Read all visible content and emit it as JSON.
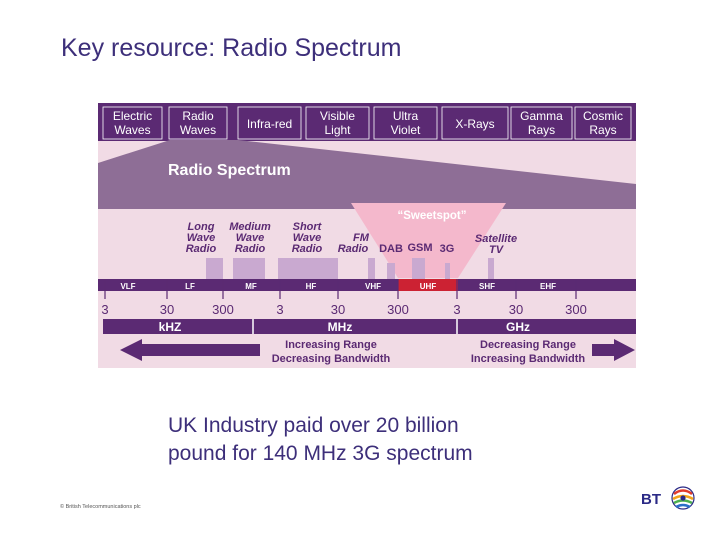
{
  "slide": {
    "title": "Key resource: Radio Spectrum",
    "caption_line1": "UK Industry paid over 20 billion",
    "caption_line2": "pound for 140 MHz 3G spectrum",
    "copyright": "© British Telecommunications plc",
    "logo_text": "BT"
  },
  "diagram": {
    "waves": [
      [
        "Electric",
        "Waves"
      ],
      [
        "Radio",
        "Waves"
      ],
      [
        "Infra-red",
        ""
      ],
      [
        "Visible",
        "Light"
      ],
      [
        "Ultra",
        "Violet"
      ],
      [
        "X-Rays",
        ""
      ],
      [
        "Gamma",
        "Rays"
      ],
      [
        "Cosmic",
        "Rays"
      ]
    ],
    "spectrum_title": "Radio Spectrum",
    "sweetspot": "“Sweetspot”",
    "services": {
      "long_wave": [
        "Long",
        "Wave",
        "Radio"
      ],
      "medium_wave": [
        "Medium",
        "Wave",
        "Radio"
      ],
      "short_wave": [
        "Short",
        "Wave",
        "Radio"
      ],
      "fm_radio": [
        "FM",
        "Radio"
      ],
      "dab": "DAB",
      "gsm": "GSM",
      "g3": "3G",
      "satellite_tv": [
        "Satellite",
        "TV"
      ]
    },
    "bands": [
      "VLF",
      "LF",
      "MF",
      "HF",
      "VHF",
      "UHF",
      "SHF",
      "EHF"
    ],
    "scale_numbers": [
      "3",
      "30",
      "300",
      "3",
      "30",
      "300",
      "3",
      "30",
      "300"
    ],
    "units": [
      "kHZ",
      "MHz",
      "GHz"
    ],
    "range_left": [
      "Increasing Range",
      "Decreasing Bandwidth"
    ],
    "range_right": [
      "Decreasing Range",
      "Increasing Bandwidth"
    ],
    "colors": {
      "dark_purple": "#5b2a73",
      "pink_bg": "#f1dbe5",
      "uhf_red": "#cc2233",
      "sweetspot_pink": "#f4b8cc"
    }
  }
}
